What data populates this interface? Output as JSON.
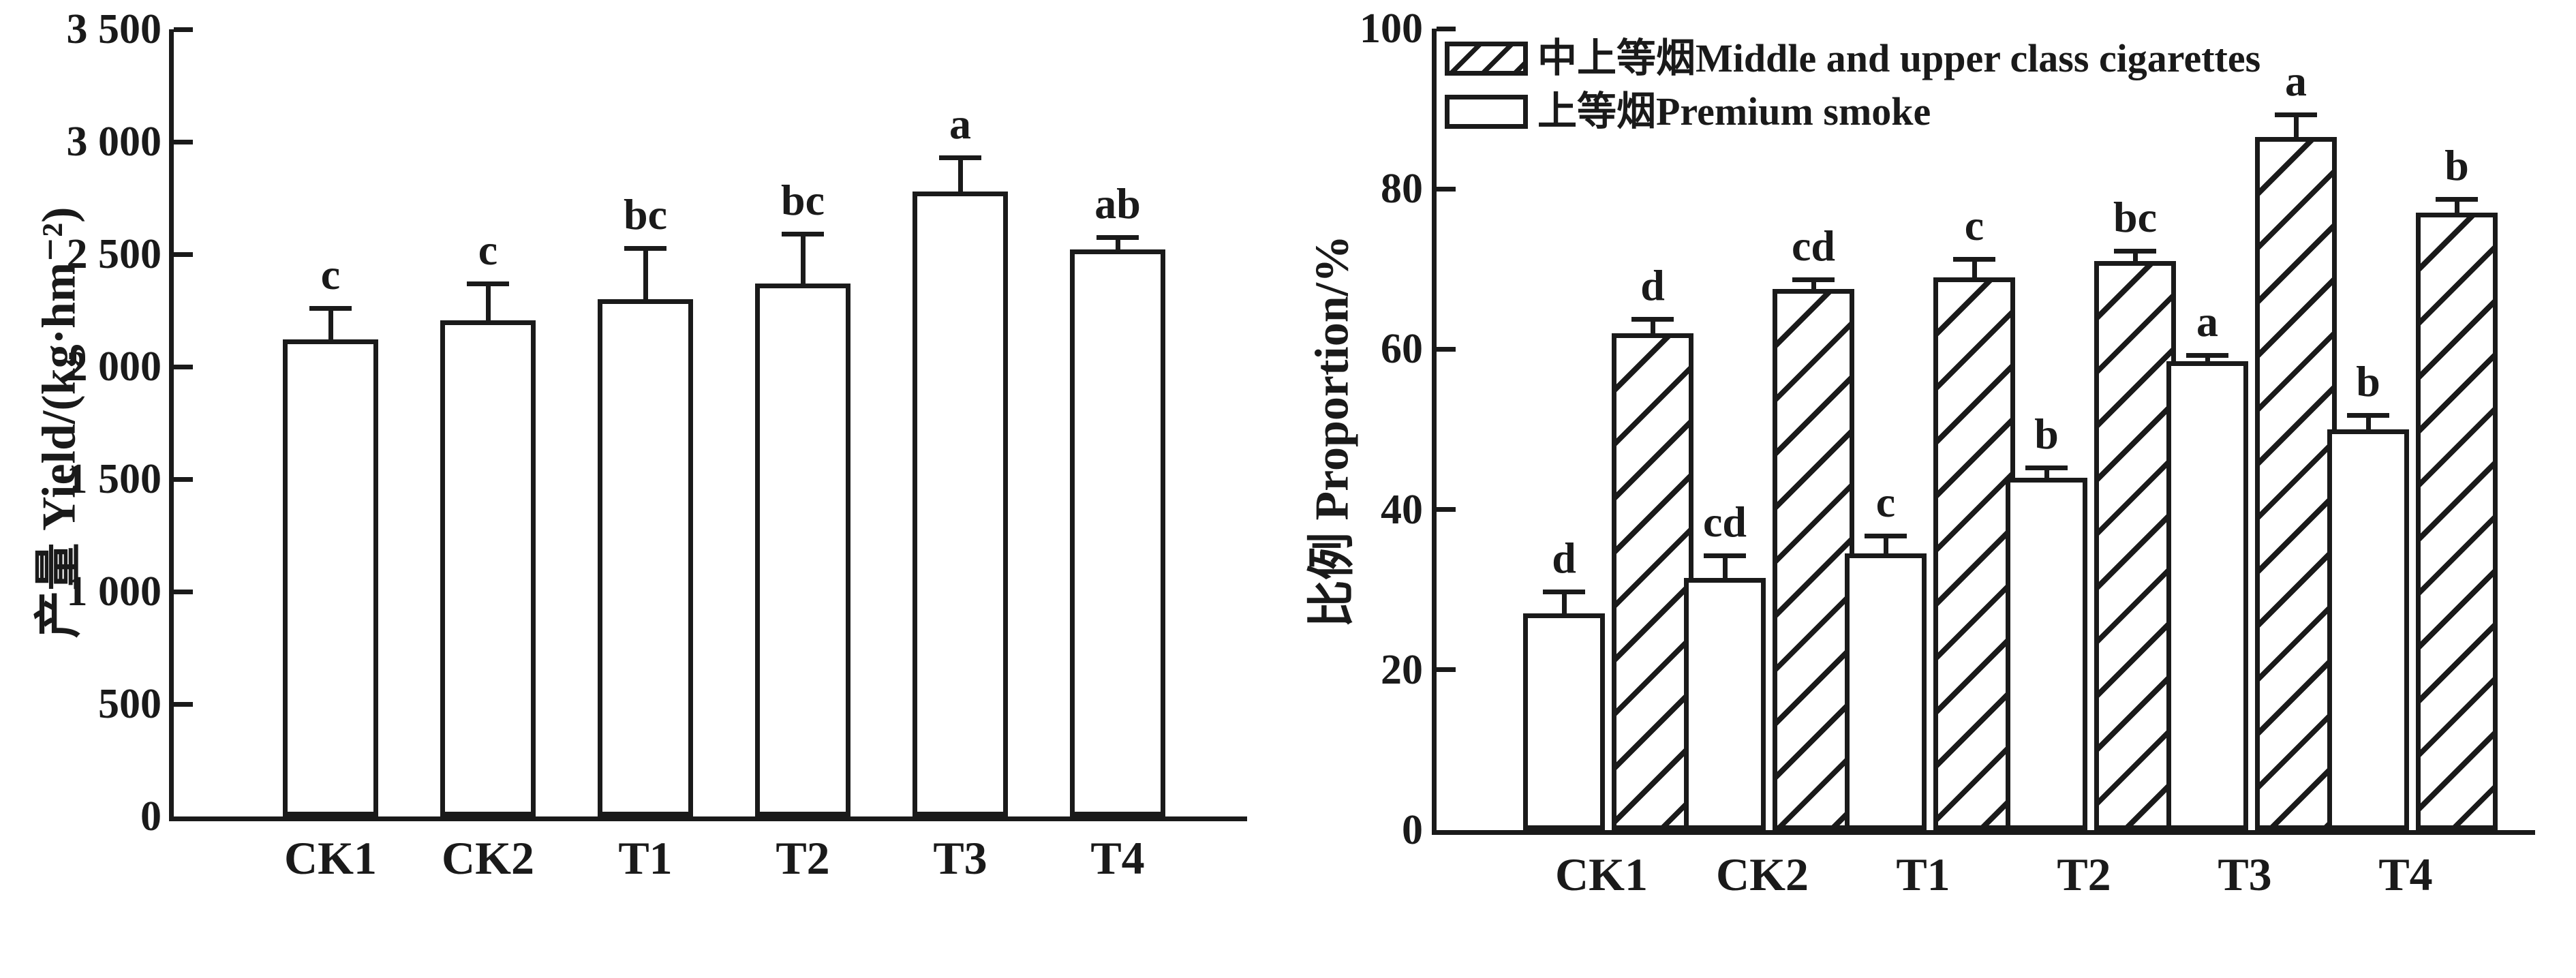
{
  "figure": {
    "background": "#ffffff",
    "ink_color": "#1a1a1a"
  },
  "chart_data": [
    {
      "id": "yield",
      "type": "bar",
      "title": "",
      "xlabel": "",
      "ylabel": "产量 Yield/(kg·hm⁻²)",
      "categories": [
        "CK1",
        "CK2",
        "T1",
        "T2",
        "T3",
        "T4"
      ],
      "values": [
        2120,
        2205,
        2300,
        2370,
        2780,
        2520
      ],
      "errors": [
        150,
        175,
        235,
        230,
        160,
        65
      ],
      "sig_letters": [
        "c",
        "c",
        "bc",
        "bc",
        "a",
        "ab"
      ],
      "ylim": [
        0,
        3500
      ],
      "ytick_step": 500,
      "ytick_labels": [
        "0",
        "500",
        "1 000",
        "1 500",
        "2 000",
        "2 500",
        "3 000",
        "3 500"
      ],
      "grid": false,
      "bar_fill": "plain-white",
      "legend_position": "none"
    },
    {
      "id": "proportion",
      "type": "bar",
      "title": "",
      "xlabel": "",
      "ylabel": "比例 Proportion/%",
      "categories": [
        "CK1",
        "CK2",
        "T1",
        "T2",
        "T3",
        "T4"
      ],
      "series": [
        {
          "name": "中上等烟Middle and upper class cigarettes",
          "pattern": "hatch",
          "values": [
            62,
            67.5,
            69,
            71,
            86.5,
            77
          ],
          "errors": [
            2,
            1.5,
            2.5,
            1.5,
            3,
            2
          ],
          "sig_letters": [
            "d",
            "cd",
            "c",
            "bc",
            "a",
            "b"
          ]
        },
        {
          "name": "上等烟Premium smoke",
          "pattern": "plain",
          "values": [
            27,
            31.5,
            34.5,
            44,
            58.5,
            50
          ],
          "errors": [
            3,
            3,
            2.5,
            1.5,
            1,
            2
          ],
          "sig_letters": [
            "d",
            "cd",
            "c",
            "b",
            "a",
            "b"
          ]
        }
      ],
      "ylim": [
        0,
        100
      ],
      "ytick_step": 20,
      "ytick_labels": [
        "0",
        "20",
        "40",
        "60",
        "80",
        "100"
      ],
      "grid": false,
      "legend_position": "upper-left"
    }
  ]
}
